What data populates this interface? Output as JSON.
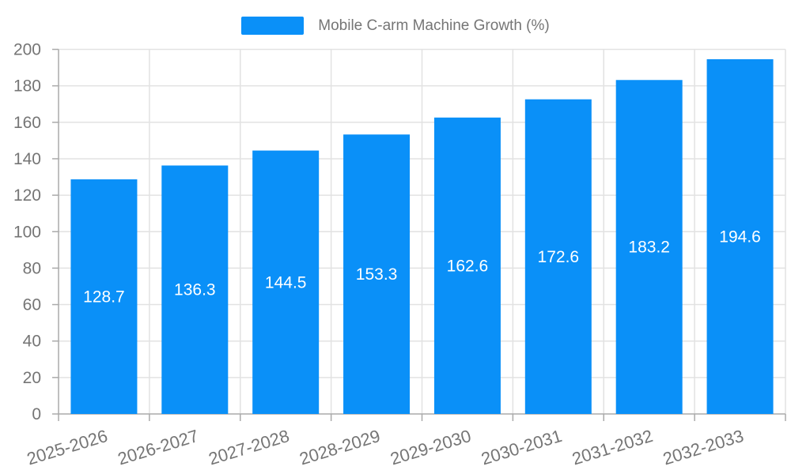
{
  "chart_data": {
    "type": "bar",
    "title": "Mobile C-arm Machine Growth (%)",
    "legend": [
      "Mobile C-arm Machine Growth (%)"
    ],
    "legend_position": "top-center",
    "categories": [
      "2025-2026",
      "2026-2027",
      "2027-2028",
      "2028-2029",
      "2029-2030",
      "2030-2031",
      "2031-2032",
      "2032-2033"
    ],
    "values": [
      128.7,
      136.3,
      144.5,
      153.3,
      162.6,
      172.6,
      183.2,
      194.6
    ],
    "value_labels": [
      "128.7",
      "136.3",
      "144.5",
      "153.3",
      "162.6",
      "172.6",
      "183.2",
      "194.6"
    ],
    "xlabel": "",
    "ylabel": "",
    "ylim": [
      0,
      200
    ],
    "ytick_step": 20,
    "yticks": [
      0,
      20,
      40,
      60,
      80,
      100,
      120,
      140,
      160,
      180,
      200
    ],
    "grid": true,
    "x_label_rotation_deg": -17,
    "colors": {
      "bar": "#0a90f8",
      "value_label": "#ffffff",
      "axis_text": "#757575",
      "legend_text": "#757575",
      "grid_line": "#e2e2e2",
      "axis_line": "#aaaaaa",
      "background": "#ffffff"
    }
  }
}
